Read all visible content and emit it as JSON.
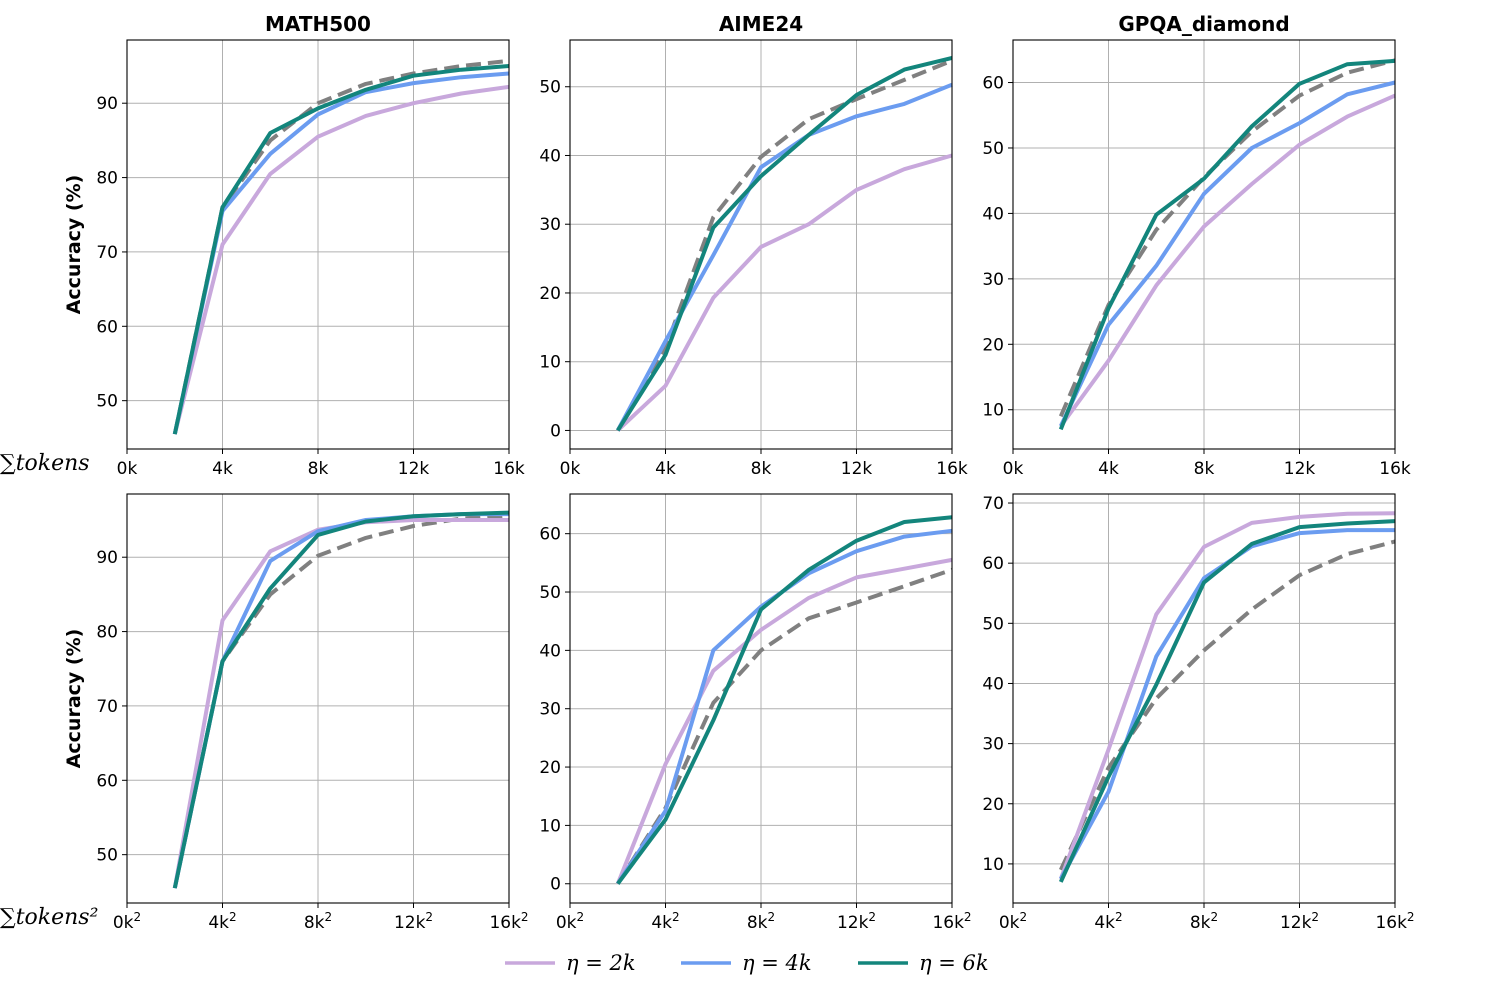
{
  "row_xlabels": [
    "∑tokens",
    "∑tokens²"
  ],
  "legend": [
    {
      "label": "η = 2k",
      "color": "#c8a8dc"
    },
    {
      "label": "η = 4k",
      "color": "#6b9cf0"
    },
    {
      "label": "η = 6k",
      "color": "#13857c"
    }
  ],
  "baseline_color": "#808080",
  "chart_data": [
    {
      "type": "line",
      "title": "MATH500",
      "ylabel": "Accuracy (%)",
      "xlabel": "∑tokens",
      "xlim": [
        0,
        16
      ],
      "ylim": [
        43.5,
        98.5
      ],
      "xticks": [
        0,
        4,
        8,
        12,
        16
      ],
      "xtick_labels": [
        "0k",
        "4k",
        "8k",
        "12k",
        "16k"
      ],
      "yticks": [
        50,
        60,
        70,
        80,
        90
      ],
      "x": [
        2,
        4,
        6,
        8,
        10,
        12,
        14,
        16
      ],
      "series": [
        {
          "name": "η = 2k",
          "values": [
            45.5,
            71,
            80.5,
            85.5,
            88.3,
            90,
            91.3,
            92.2
          ]
        },
        {
          "name": "η = 4k",
          "values": [
            45.5,
            75.5,
            83.2,
            88.5,
            91.5,
            92.7,
            93.5,
            94
          ]
        },
        {
          "name": "η = 6k",
          "values": [
            45.5,
            76,
            86,
            89.3,
            91.8,
            93.7,
            94.5,
            95
          ]
        },
        {
          "name": "baseline",
          "dashed": true,
          "values": [
            45.5,
            76,
            85,
            90,
            92.6,
            94,
            95,
            95.7
          ]
        }
      ]
    },
    {
      "type": "line",
      "title": "AIME24",
      "ylabel": "",
      "xlabel": "",
      "xlim": [
        0,
        16
      ],
      "ylim": [
        -2.7,
        56.8
      ],
      "xticks": [
        0,
        4,
        8,
        12,
        16
      ],
      "xtick_labels": [
        "0k",
        "4k",
        "8k",
        "12k",
        "16k"
      ],
      "yticks": [
        0,
        10,
        20,
        30,
        40,
        50
      ],
      "x": [
        2,
        4,
        6,
        8,
        10,
        12,
        14,
        16
      ],
      "series": [
        {
          "name": "η = 2k",
          "values": [
            0,
            6.5,
            19.3,
            26.7,
            30,
            35,
            38,
            40
          ]
        },
        {
          "name": "η = 4k",
          "values": [
            0,
            13,
            25.5,
            38.3,
            43,
            45.7,
            47.5,
            50.3
          ]
        },
        {
          "name": "η = 6k",
          "values": [
            0,
            11,
            29.5,
            37,
            43,
            48.8,
            52.5,
            54.2
          ]
        },
        {
          "name": "baseline",
          "dashed": true,
          "values": [
            0,
            12,
            31,
            39.8,
            45.3,
            48.2,
            51,
            53.8
          ]
        }
      ]
    },
    {
      "type": "line",
      "title": "GPQA_diamond",
      "ylabel": "",
      "xlabel": "",
      "xlim": [
        0,
        16
      ],
      "ylim": [
        4,
        66.5
      ],
      "xticks": [
        0,
        4,
        8,
        12,
        16
      ],
      "xtick_labels": [
        "0k",
        "4k",
        "8k",
        "12k",
        "16k"
      ],
      "yticks": [
        10,
        20,
        30,
        40,
        50,
        60
      ],
      "x": [
        2,
        4,
        6,
        8,
        10,
        12,
        14,
        16
      ],
      "series": [
        {
          "name": "η = 2k",
          "values": [
            7.5,
            17.5,
            29,
            38,
            44.5,
            50.5,
            54.8,
            58
          ]
        },
        {
          "name": "η = 4k",
          "values": [
            7.5,
            23,
            32,
            43,
            50,
            53.8,
            58.2,
            60
          ]
        },
        {
          "name": "η = 6k",
          "values": [
            7,
            25.5,
            39.8,
            45.3,
            53.3,
            59.8,
            62.8,
            63.3
          ]
        },
        {
          "name": "baseline",
          "dashed": true,
          "values": [
            9,
            26,
            37.5,
            45.5,
            52.5,
            58,
            61.5,
            63.4
          ]
        }
      ]
    },
    {
      "type": "line",
      "title": "",
      "ylabel": "Accuracy (%)",
      "xlabel": "∑tokens²",
      "xlim": [
        0,
        16
      ],
      "ylim": [
        43.5,
        98.5
      ],
      "xticks": [
        0,
        4,
        8,
        12,
        16
      ],
      "xtick_labels": [
        "0k²",
        "4k²",
        "8k²",
        "12k²",
        "16k²"
      ],
      "yticks": [
        50,
        60,
        70,
        80,
        90
      ],
      "x": [
        2,
        4,
        6,
        8,
        10,
        12,
        14,
        16
      ],
      "series": [
        {
          "name": "η = 2k",
          "values": [
            45.5,
            81.5,
            90.8,
            93.7,
            94.7,
            95,
            95,
            95
          ]
        },
        {
          "name": "η = 4k",
          "values": [
            45.5,
            76,
            89.5,
            93.5,
            95,
            95.5,
            95.8,
            95.8
          ]
        },
        {
          "name": "η = 6k",
          "values": [
            45.5,
            76,
            85.8,
            93,
            94.8,
            95.5,
            95.8,
            96
          ]
        },
        {
          "name": "baseline",
          "dashed": true,
          "values": [
            45.5,
            76,
            85,
            90.2,
            92.6,
            94.2,
            95.2,
            95.6
          ]
        }
      ]
    },
    {
      "type": "line",
      "title": "",
      "ylabel": "",
      "xlabel": "",
      "xlim": [
        0,
        16
      ],
      "ylim": [
        -3.3,
        66.8
      ],
      "xticks": [
        0,
        4,
        8,
        12,
        16
      ],
      "xtick_labels": [
        "0k²",
        "4k²",
        "8k²",
        "12k²",
        "16k²"
      ],
      "yticks": [
        0,
        10,
        20,
        30,
        40,
        50,
        60
      ],
      "x": [
        2,
        4,
        6,
        8,
        10,
        12,
        14,
        16
      ],
      "series": [
        {
          "name": "η = 2k",
          "values": [
            0,
            20.5,
            36.5,
            43.5,
            49,
            52.5,
            54,
            55.5
          ]
        },
        {
          "name": "η = 4k",
          "values": [
            0,
            12.5,
            40,
            47.5,
            53.2,
            57,
            59.5,
            60.5
          ]
        },
        {
          "name": "η = 6k",
          "values": [
            0,
            11,
            28,
            47,
            53.8,
            58.8,
            62,
            62.8
          ]
        },
        {
          "name": "baseline",
          "dashed": true,
          "values": [
            0,
            13,
            31,
            40,
            45.5,
            48.2,
            51,
            53.8
          ]
        }
      ]
    },
    {
      "type": "line",
      "title": "",
      "ylabel": "",
      "xlabel": "",
      "xlim": [
        0,
        16
      ],
      "ylim": [
        3.5,
        71.5
      ],
      "xticks": [
        0,
        4,
        8,
        12,
        16
      ],
      "xtick_labels": [
        "0k²",
        "4k²",
        "8k²",
        "12k²",
        "16k²"
      ],
      "yticks": [
        10,
        20,
        30,
        40,
        50,
        60,
        70
      ],
      "x": [
        2,
        4,
        6,
        8,
        10,
        12,
        14,
        16
      ],
      "series": [
        {
          "name": "η = 2k",
          "values": [
            7.5,
            29,
            51.5,
            62.7,
            66.7,
            67.7,
            68.2,
            68.3
          ]
        },
        {
          "name": "η = 4k",
          "values": [
            7.5,
            22,
            44.5,
            57.5,
            62.8,
            65,
            65.5,
            65.5
          ]
        },
        {
          "name": "η = 6k",
          "values": [
            7,
            24.5,
            39.8,
            56.8,
            63.2,
            66,
            66.6,
            67
          ]
        },
        {
          "name": "baseline",
          "dashed": true,
          "values": [
            9,
            26,
            37.5,
            45.5,
            52.3,
            58,
            61.5,
            63.6
          ]
        }
      ]
    }
  ]
}
